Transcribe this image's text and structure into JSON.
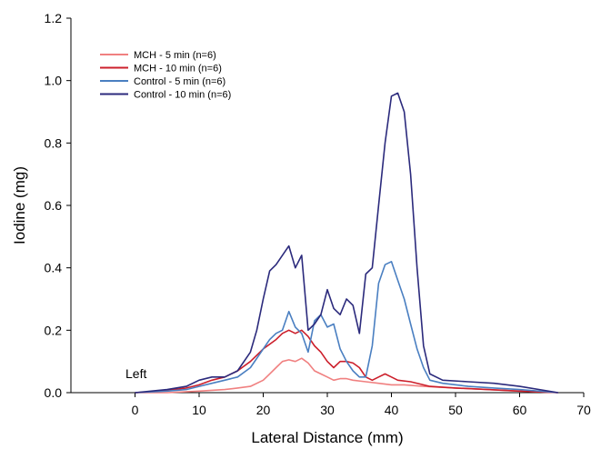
{
  "chart_data": {
    "type": "line",
    "xlabel": "Lateral Distance (mm)",
    "ylabel": "Iodine (mg)",
    "xlim": [
      -10,
      70
    ],
    "ylim": [
      0,
      1.2
    ],
    "xticks": [
      0,
      10,
      20,
      30,
      40,
      50,
      60,
      70
    ],
    "yticks": [
      0.0,
      0.2,
      0.4,
      0.6,
      0.8,
      1.0,
      1.2
    ],
    "ytick_labels": [
      "0.0",
      "0.2",
      "0.4",
      "0.6",
      "0.8",
      "1.0",
      "1.2"
    ],
    "annotation": "Left",
    "legend_position": "top-left",
    "grid": false,
    "series": [
      {
        "name": "MCH - 5 min (n=6)",
        "color": "#f08080",
        "x": [
          0,
          5,
          10,
          14,
          16,
          18,
          20,
          21,
          22,
          23,
          24,
          25,
          26,
          27,
          28,
          29,
          30,
          31,
          32,
          33,
          34,
          36,
          38,
          40,
          42,
          45,
          50,
          55,
          60,
          66
        ],
        "y": [
          0,
          0,
          0.005,
          0.01,
          0.015,
          0.02,
          0.04,
          0.06,
          0.08,
          0.1,
          0.105,
          0.1,
          0.11,
          0.095,
          0.07,
          0.06,
          0.05,
          0.04,
          0.045,
          0.045,
          0.04,
          0.035,
          0.03,
          0.025,
          0.025,
          0.02,
          0.015,
          0.01,
          0.005,
          0
        ]
      },
      {
        "name": "MCH - 10 min (n=6)",
        "color": "#cc1f2b",
        "x": [
          0,
          4,
          8,
          10,
          12,
          14,
          16,
          18,
          20,
          22,
          23,
          24,
          25,
          26,
          27,
          28,
          29,
          30,
          31,
          32,
          33,
          34,
          35,
          36,
          37,
          38,
          39,
          40,
          41,
          43,
          46,
          50,
          55,
          60,
          66
        ],
        "y": [
          0,
          0.005,
          0.015,
          0.025,
          0.04,
          0.05,
          0.07,
          0.1,
          0.14,
          0.17,
          0.19,
          0.2,
          0.19,
          0.2,
          0.18,
          0.15,
          0.13,
          0.1,
          0.08,
          0.1,
          0.1,
          0.095,
          0.08,
          0.05,
          0.04,
          0.05,
          0.06,
          0.05,
          0.04,
          0.035,
          0.02,
          0.015,
          0.01,
          0.005,
          0
        ]
      },
      {
        "name": "Control - 5 min (n=6)",
        "color": "#4a7fc1",
        "x": [
          0,
          5,
          8,
          10,
          12,
          14,
          16,
          18,
          20,
          21,
          22,
          23,
          24,
          25,
          26,
          27,
          28,
          29,
          30,
          31,
          32,
          33,
          34,
          35,
          36,
          37,
          38,
          39,
          40,
          41,
          42,
          43,
          44,
          45,
          46,
          48,
          52,
          56,
          60,
          66
        ],
        "y": [
          0,
          0.005,
          0.01,
          0.02,
          0.03,
          0.04,
          0.05,
          0.08,
          0.14,
          0.17,
          0.19,
          0.2,
          0.26,
          0.21,
          0.19,
          0.13,
          0.23,
          0.25,
          0.21,
          0.22,
          0.14,
          0.1,
          0.07,
          0.05,
          0.05,
          0.15,
          0.35,
          0.41,
          0.42,
          0.36,
          0.3,
          0.22,
          0.14,
          0.08,
          0.04,
          0.03,
          0.02,
          0.015,
          0.01,
          0
        ]
      },
      {
        "name": "Control - 10 min (n=6)",
        "color": "#2b2a7c",
        "x": [
          0,
          5,
          8,
          10,
          12,
          14,
          16,
          18,
          19,
          20,
          21,
          22,
          23,
          24,
          25,
          26,
          27,
          28,
          29,
          30,
          31,
          32,
          33,
          34,
          35,
          36,
          37,
          38,
          39,
          40,
          41,
          42,
          43,
          44,
          45,
          46,
          48,
          52,
          56,
          60,
          66
        ],
        "y": [
          0,
          0.01,
          0.02,
          0.04,
          0.05,
          0.05,
          0.07,
          0.13,
          0.2,
          0.3,
          0.39,
          0.41,
          0.44,
          0.47,
          0.4,
          0.44,
          0.2,
          0.22,
          0.25,
          0.33,
          0.27,
          0.25,
          0.3,
          0.28,
          0.19,
          0.38,
          0.4,
          0.6,
          0.8,
          0.95,
          0.96,
          0.9,
          0.7,
          0.4,
          0.15,
          0.06,
          0.04,
          0.035,
          0.03,
          0.02,
          0
        ]
      }
    ]
  }
}
